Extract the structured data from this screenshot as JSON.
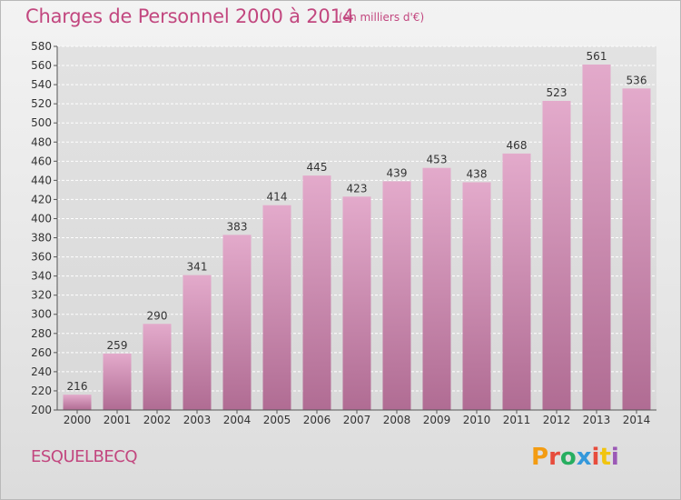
{
  "header": {
    "title": "Charges de Personnel 2000 à 2014",
    "subtitle": "(en milliers d'€)"
  },
  "footer": {
    "commune": "ESQUELBECQ",
    "logo_text": "Proxiti"
  },
  "colors": {
    "title": "#c2477f",
    "bar_top": "#e3aacb",
    "bar_bottom": "#b06c93",
    "grid": "#ffffff",
    "logo": [
      "#f39c12",
      "#e74c3c",
      "#27ae60",
      "#3498db",
      "#e74c3c",
      "#f1c40f",
      "#9b59b6"
    ]
  },
  "chart_data": {
    "type": "bar",
    "categories": [
      "2000",
      "2001",
      "2002",
      "2003",
      "2004",
      "2005",
      "2006",
      "2007",
      "2008",
      "2009",
      "2010",
      "2011",
      "2012",
      "2013",
      "2014"
    ],
    "values": [
      216,
      259,
      290,
      341,
      383,
      414,
      445,
      423,
      439,
      453,
      438,
      468,
      523,
      561,
      536
    ],
    "ylim": [
      200,
      580
    ],
    "yticks": [
      200,
      220,
      240,
      260,
      280,
      300,
      320,
      340,
      360,
      380,
      400,
      420,
      440,
      460,
      480,
      500,
      520,
      540,
      560,
      580
    ],
    "grid": true,
    "data_labels": true
  }
}
